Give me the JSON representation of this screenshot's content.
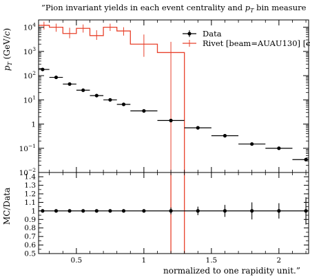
{
  "title_pre": "”Pion invariant yields in each event centrality and ",
  "title_var": "p",
  "title_sub": "T",
  "title_post": " bin measure",
  "xlabel": "normalized to one rapidity unit.”",
  "ylabel_main": "p_T (GeV/c)",
  "ylabel_ratio": "MC/Data",
  "colors": {
    "data": "#000000",
    "mc": "#e8402a",
    "ratio_line": "#e8402a",
    "axis": "#000000"
  },
  "legend": [
    {
      "name": "Data",
      "marker": "point-with-errorbar"
    },
    {
      "name": "Rivet [beam=AUAU130] [c",
      "marker": "red-line"
    }
  ],
  "x_tick_labels": [
    "0.5",
    "1",
    "1.5",
    "2"
  ],
  "y_main_tick_labels": [
    {
      "base": "10",
      "exp": "4",
      "v": 10000
    },
    {
      "base": "10",
      "exp": "3",
      "v": 1000
    },
    {
      "base": "10",
      "exp": "2",
      "v": 100
    },
    {
      "base": "10",
      "exp": "1",
      "v": 10
    },
    {
      "base": "1",
      "exp": "",
      "v": 1
    },
    {
      "base": "10",
      "exp": "−1",
      "v": 0.1
    },
    {
      "base": "10",
      "exp": "−2",
      "v": 0.01
    }
  ],
  "y_ratio_tick_labels": [
    "1.4",
    "1.3",
    "1.2",
    "1.1",
    "1",
    "0.9",
    "0.8",
    "0.7",
    "0.6",
    "0.5"
  ],
  "chart_data": [
    {
      "type": "scatter",
      "panel": "main",
      "yscale": "log",
      "xlim": [
        0.22,
        2.22
      ],
      "ylim": [
        0.01,
        20000
      ],
      "series": [
        {
          "name": "Data",
          "x": [
            0.25,
            0.35,
            0.45,
            0.55,
            0.65,
            0.75,
            0.85,
            1.0,
            1.2,
            1.4,
            1.6,
            1.8,
            2.0,
            2.2
          ],
          "xerr": [
            0.05,
            0.05,
            0.05,
            0.05,
            0.05,
            0.05,
            0.05,
            0.1,
            0.1,
            0.1,
            0.1,
            0.1,
            0.1,
            0.1
          ],
          "y": [
            180,
            85,
            45,
            25,
            15,
            10,
            6.5,
            3.5,
            1.4,
            0.7,
            0.33,
            0.15,
            0.1,
            0.034
          ]
        },
        {
          "name": "Rivet [beam=AUAU130] [c",
          "type": "step",
          "bins": [
            {
              "x0": 0.22,
              "x1": 0.3,
              "y": 12000,
              "err_lo": 8000,
              "err_hi": 17000
            },
            {
              "x0": 0.3,
              "x1": 0.4,
              "y": 10000,
              "err_lo": 6500,
              "err_hi": 14000
            },
            {
              "x0": 0.4,
              "x1": 0.5,
              "y": 5500,
              "err_lo": 3500,
              "err_hi": 9500
            },
            {
              "x0": 0.5,
              "x1": 0.6,
              "y": 9000,
              "err_lo": 6000,
              "err_hi": 13000
            },
            {
              "x0": 0.6,
              "x1": 0.7,
              "y": 4500,
              "err_lo": 3000,
              "err_hi": 7500
            },
            {
              "x0": 0.7,
              "x1": 0.8,
              "y": 10000,
              "err_lo": 7000,
              "err_hi": 14000
            },
            {
              "x0": 0.8,
              "x1": 0.9,
              "y": 7000,
              "err_lo": 4500,
              "err_hi": 10000
            },
            {
              "x0": 0.9,
              "x1": 1.1,
              "y": 2000,
              "err_lo": 600,
              "err_hi": 5000
            },
            {
              "x0": 1.1,
              "x1": 1.3,
              "y": 900,
              "err_lo": 0.01,
              "err_hi": 2500
            }
          ]
        }
      ]
    },
    {
      "type": "scatter",
      "panel": "ratio",
      "ylabel": "MC/Data",
      "xlim": [
        0.22,
        2.22
      ],
      "ylim": [
        0.5,
        1.45
      ],
      "series": [
        {
          "name": "Data",
          "x": [
            0.25,
            0.35,
            0.45,
            0.55,
            0.65,
            0.75,
            0.85,
            1.0,
            1.2,
            1.4,
            1.6,
            1.8,
            2.0,
            2.2
          ],
          "y": [
            1,
            1,
            1,
            1,
            1,
            1,
            1,
            1,
            1,
            1,
            1,
            1,
            1,
            1
          ],
          "yerr": [
            0.006,
            0.006,
            0.006,
            0.008,
            0.012,
            0.015,
            0.02,
            0.02,
            0.04,
            0.05,
            0.07,
            0.1,
            0.09,
            0.16
          ]
        }
      ],
      "mc_vertical_lines_x": [
        1.2,
        1.3
      ]
    }
  ]
}
